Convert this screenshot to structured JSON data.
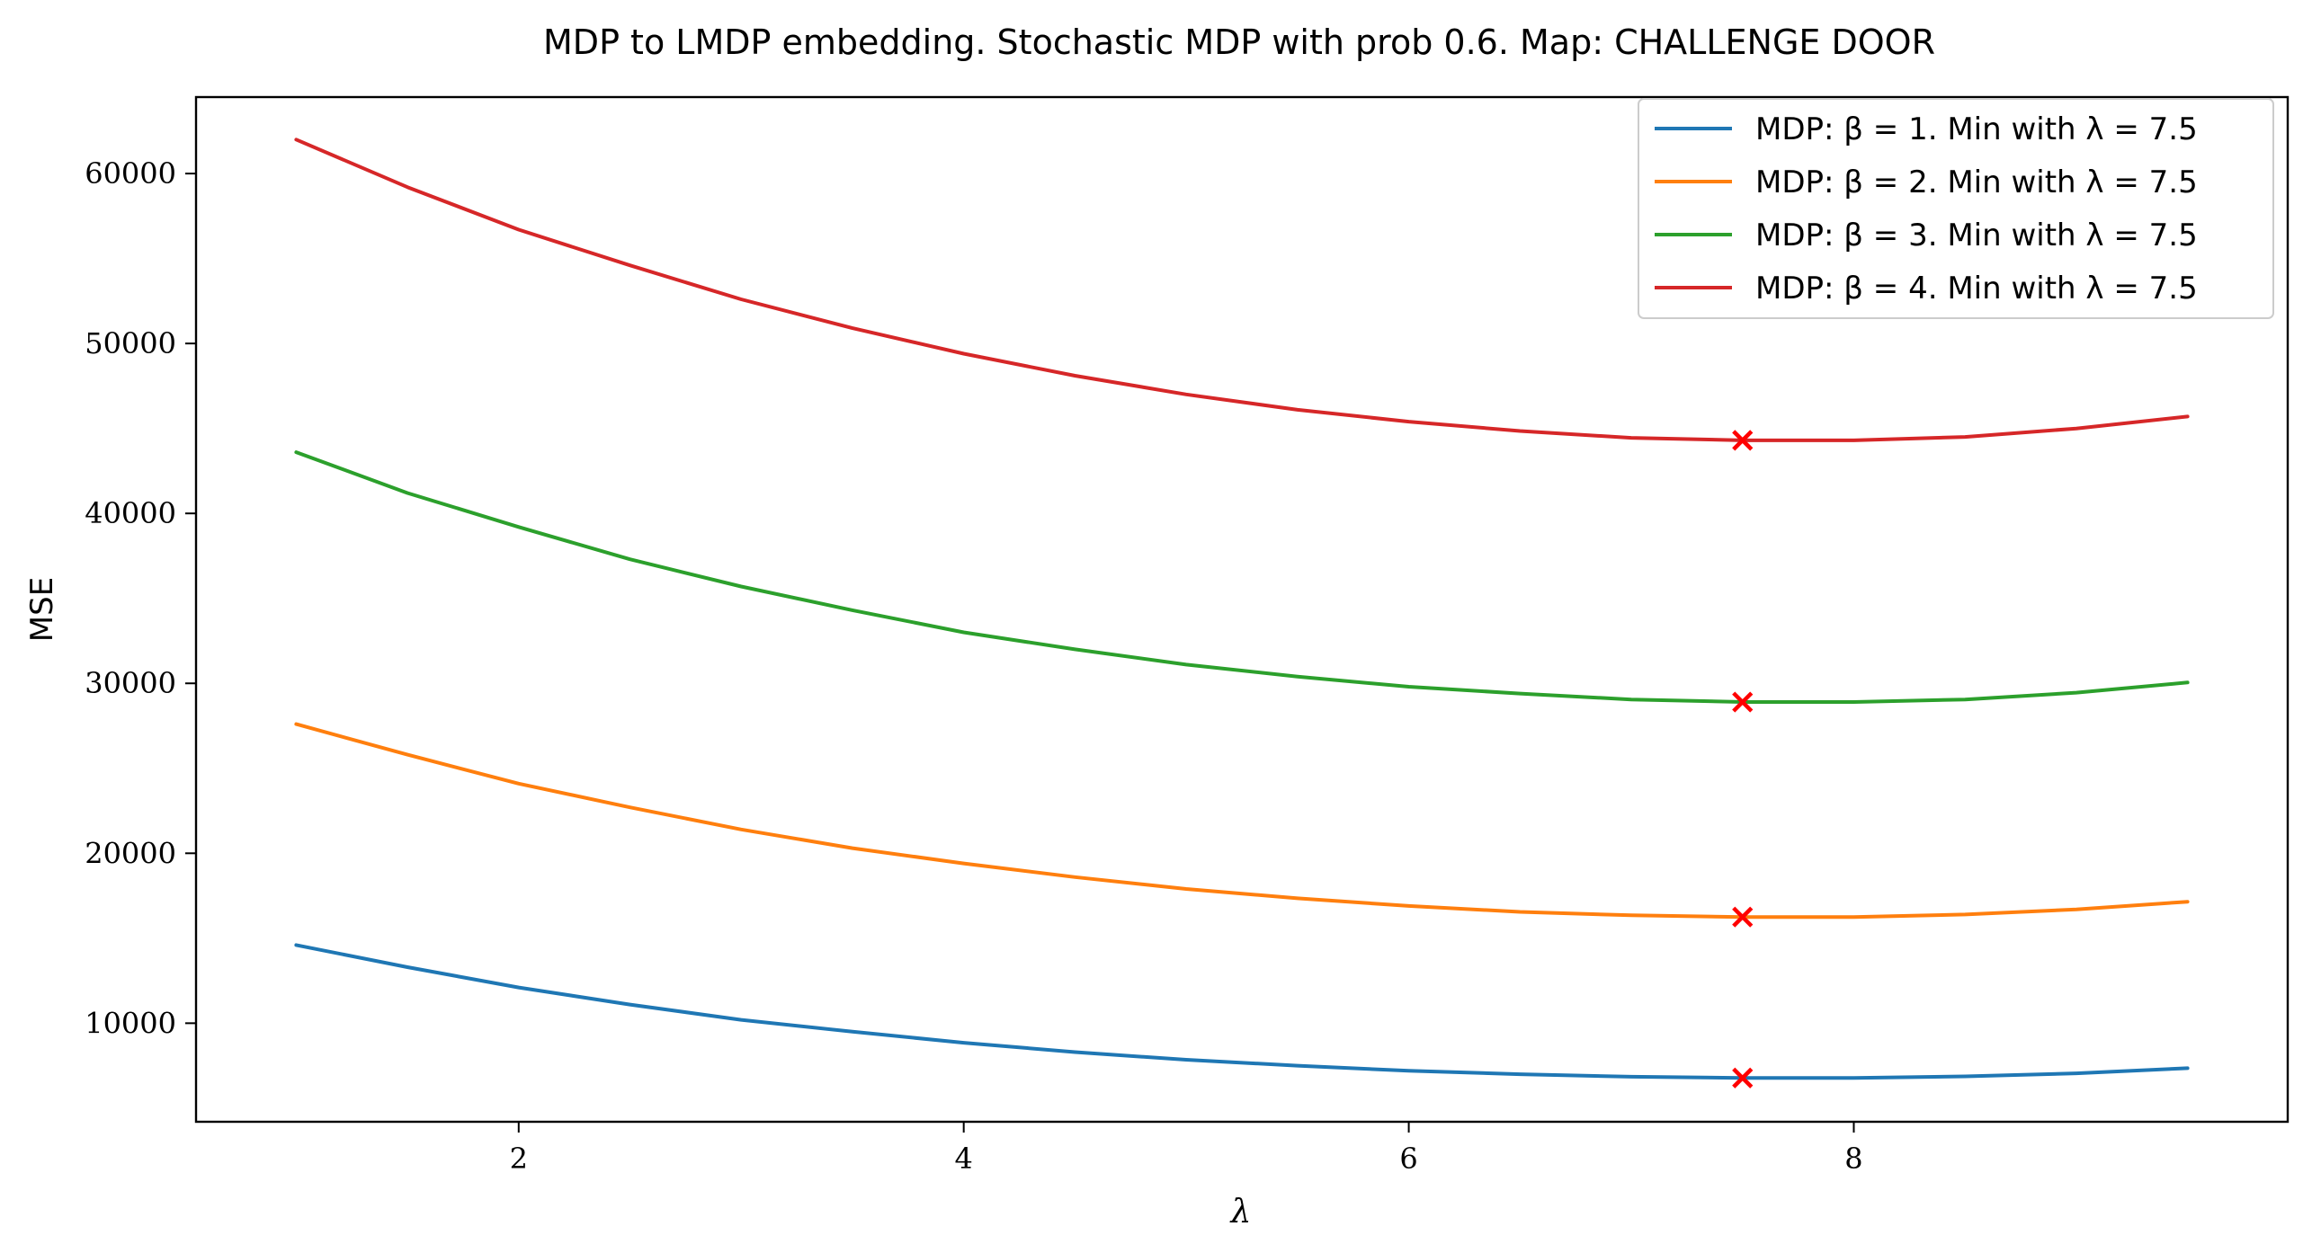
{
  "chart_data": {
    "type": "line",
    "title": "MDP to LMDP embedding. Stochastic MDP with prob 0.6. Map: CHALLENGE DOOR",
    "xlabel": "λ",
    "ylabel": "MSE",
    "xlim": [
      0.55,
      9.95
    ],
    "ylim": [
      4200,
      64500
    ],
    "xticks": [
      2,
      4,
      6,
      8
    ],
    "yticks": [
      10000,
      20000,
      30000,
      40000,
      50000,
      60000
    ],
    "grid": false,
    "legend_position": "top-right",
    "x": [
      1.0,
      1.5,
      2.0,
      2.5,
      3.0,
      3.5,
      4.0,
      4.5,
      5.0,
      5.5,
      6.0,
      6.5,
      7.0,
      7.5,
      8.0,
      8.5,
      9.0,
      9.5
    ],
    "series": [
      {
        "name": "MDP: β = 1. Min with λ = 7.5",
        "color": "#1f77b4",
        "values": [
          14600,
          13300,
          12100,
          11100,
          10200,
          9500,
          8850,
          8300,
          7850,
          7500,
          7200,
          7000,
          6850,
          6780,
          6780,
          6870,
          7050,
          7350
        ],
        "min_x": 7.5,
        "min_y": 6780
      },
      {
        "name": "MDP: β = 2. Min with λ = 7.5",
        "color": "#ff7f0e",
        "values": [
          27600,
          25800,
          24100,
          22700,
          21400,
          20300,
          19400,
          18600,
          17900,
          17350,
          16900,
          16550,
          16350,
          16250,
          16250,
          16400,
          16700,
          17150
        ],
        "min_x": 7.5,
        "min_y": 16250
      },
      {
        "name": "MDP: β = 3. Min with λ = 7.5",
        "color": "#2ca02c",
        "values": [
          43600,
          41200,
          39200,
          37300,
          35700,
          34300,
          33000,
          32000,
          31100,
          30400,
          29800,
          29400,
          29050,
          28900,
          28900,
          29050,
          29450,
          30050
        ],
        "min_x": 7.5,
        "min_y": 28900
      },
      {
        "name": "MDP: β = 4. Min with λ = 7.5",
        "color": "#d62728",
        "values": [
          62000,
          59200,
          56700,
          54600,
          52600,
          50900,
          49400,
          48100,
          47000,
          46100,
          45400,
          44850,
          44450,
          44300,
          44300,
          44500,
          45000,
          45700
        ],
        "min_x": 7.5,
        "min_y": 44300
      }
    ],
    "min_marker_color": "#ff0000"
  }
}
